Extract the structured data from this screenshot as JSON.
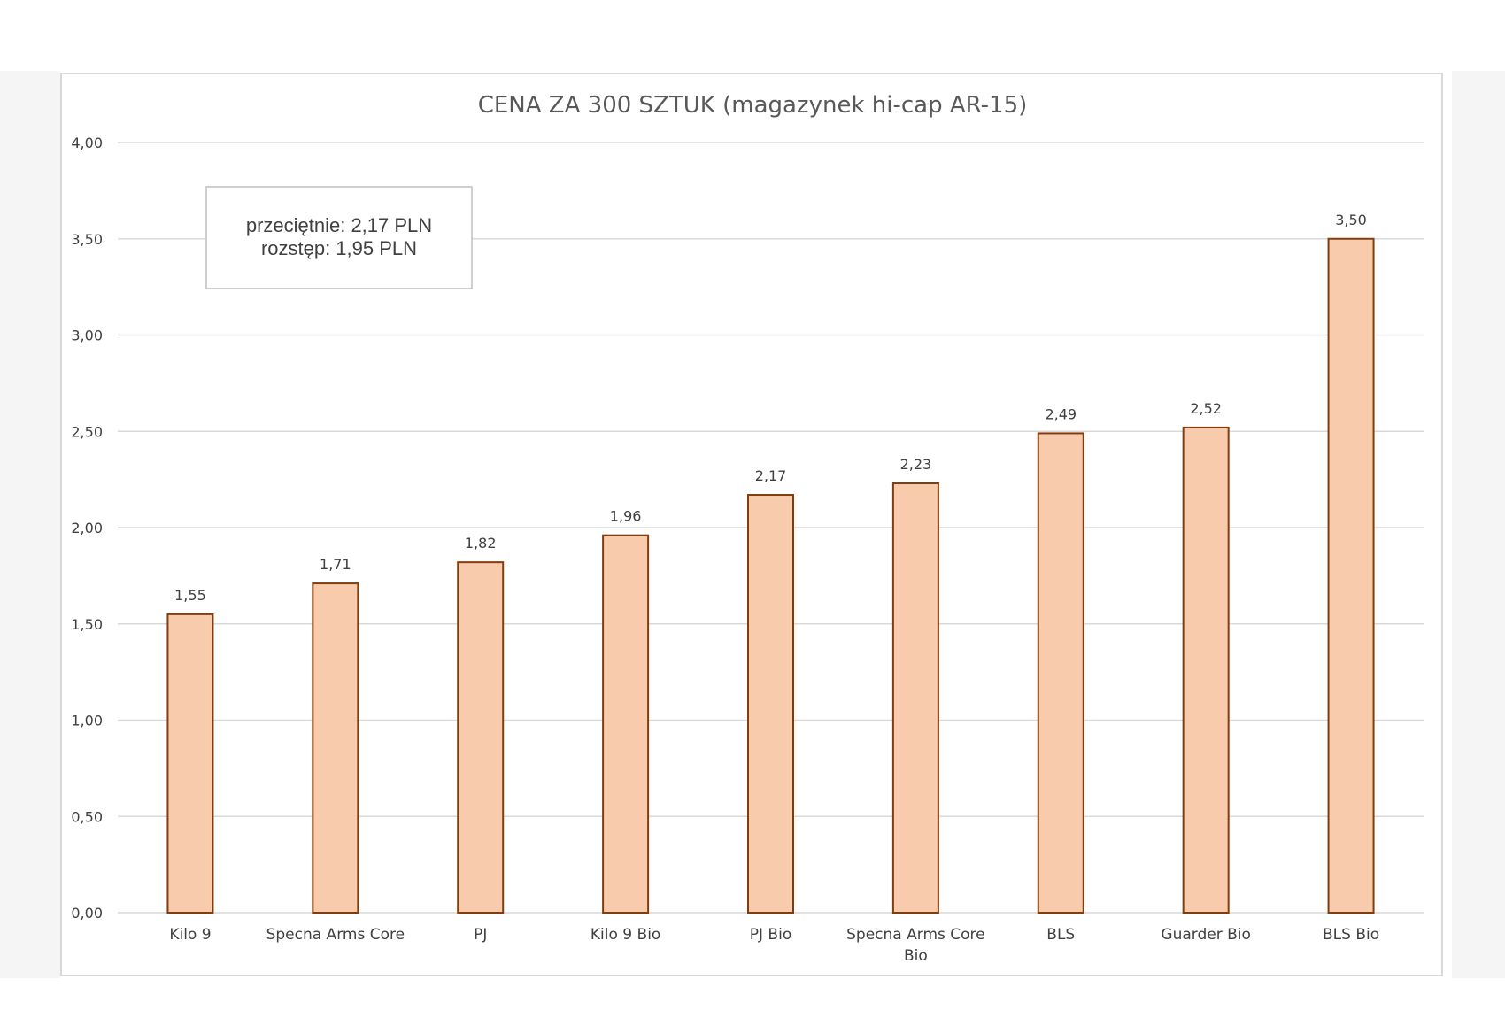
{
  "chart_data": {
    "type": "bar",
    "title": "CENA ZA 300 SZTUK (magazynek hi-cap AR-15)",
    "xlabel": "",
    "ylabel": "",
    "categories": [
      [
        "Kilo 9"
      ],
      [
        "Specna Arms Core"
      ],
      [
        "PJ"
      ],
      [
        "Kilo 9 Bio"
      ],
      [
        "PJ Bio"
      ],
      [
        "Specna Arms Core",
        "Bio"
      ],
      [
        "BLS"
      ],
      [
        "Guarder Bio"
      ],
      [
        "BLS Bio"
      ]
    ],
    "values": [
      1.55,
      1.71,
      1.82,
      1.96,
      2.17,
      2.23,
      2.49,
      2.52,
      3.5
    ],
    "data_labels": [
      "1,55",
      "1,71",
      "1,82",
      "1,96",
      "2,17",
      "2,23",
      "2,49",
      "2,52",
      "3,50"
    ],
    "ylim": [
      0,
      4
    ],
    "y_ticks": [
      0,
      0.5,
      1,
      1.5,
      2,
      2.5,
      3,
      3.5,
      4
    ],
    "y_tick_labels": [
      "0,00",
      "0,50",
      "1,00",
      "1,50",
      "2,00",
      "2,50",
      "3,00",
      "3,50",
      "4,00"
    ],
    "grid": true,
    "legend": "none",
    "annotation": {
      "lines": [
        "przeciętnie: 2,17 PLN",
        "rozstęp: 1,95 PLN"
      ]
    },
    "colors": {
      "bar_fill": "#f8cbad",
      "bar_stroke": "#843c0c",
      "grid": "#d9d9d9",
      "text": "#404040",
      "title": "#595959"
    }
  }
}
